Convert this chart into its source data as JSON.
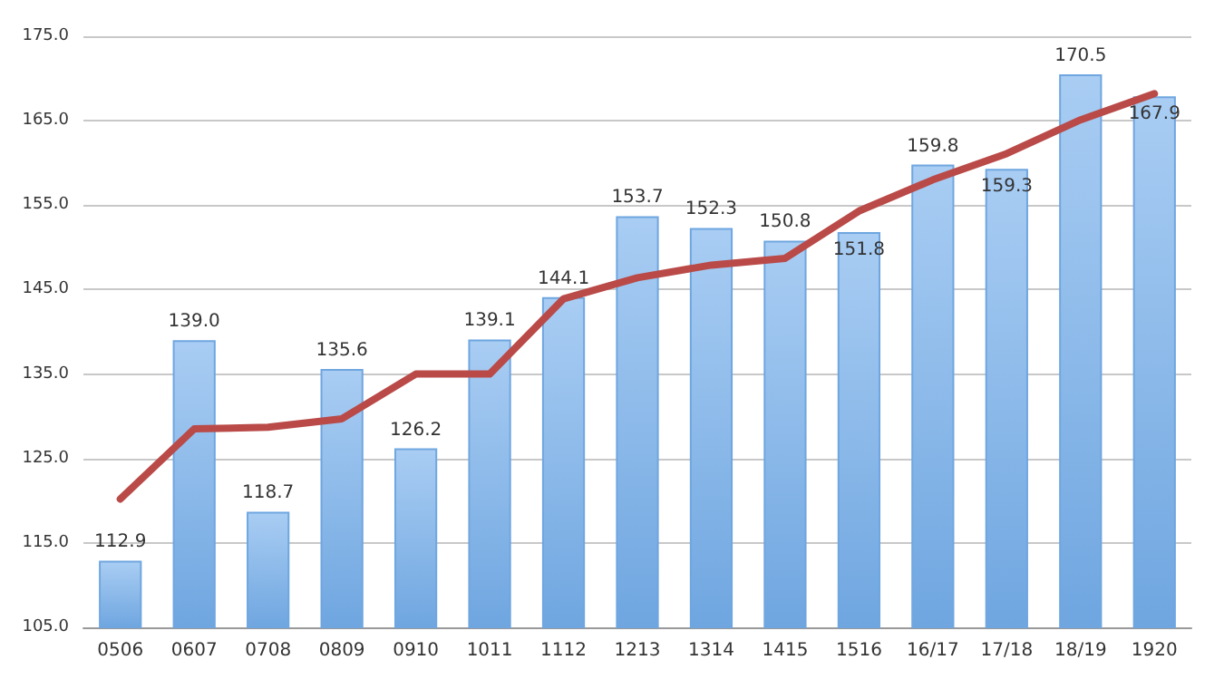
{
  "chart_data": {
    "type": "bar",
    "categories": [
      "0506",
      "0607",
      "0708",
      "0809",
      "0910",
      "1011",
      "1112",
      "1213",
      "1314",
      "1415",
      "1516",
      "16/17",
      "17/18",
      "18/19",
      "1920"
    ],
    "series": [
      {
        "color": "#6fa6e0",
        "values": [
          112.9,
          139.0,
          118.7,
          135.6,
          126.2,
          139.1,
          144.1,
          153.7,
          152.3,
          150.8,
          151.8,
          159.8,
          159.3,
          170.5,
          167.9
        ],
        "value_labels": [
          "112.9",
          "139.0",
          "118.7",
          "135.6",
          "126.2",
          "139.1",
          "144.1",
          "153.7",
          "152.3",
          "150.8",
          "151.8",
          "159.8",
          "159.3",
          "170.5",
          "167.9"
        ]
      },
      {
        "type": "line",
        "color": "#b94a48",
        "values": [
          120.2,
          128.5,
          128.7,
          129.7,
          135.0,
          135.0,
          143.9,
          146.4,
          147.9,
          148.7,
          154.3,
          158.0,
          161.1,
          165.1,
          168.2
        ],
        "marker": "none"
      }
    ],
    "ylim": [
      105,
      175
    ],
    "yticks": [
      {
        "value": 105,
        "label": "105.0"
      },
      {
        "value": 115,
        "label": "115.0"
      },
      {
        "value": 125,
        "label": "125.0"
      },
      {
        "value": 135,
        "label": "135.0"
      },
      {
        "value": 145,
        "label": "145.0"
      },
      {
        "value": 155,
        "label": "155.0"
      },
      {
        "value": 165,
        "label": "165.0"
      },
      {
        "value": 175,
        "label": "175.0"
      }
    ],
    "grid": "y"
  }
}
